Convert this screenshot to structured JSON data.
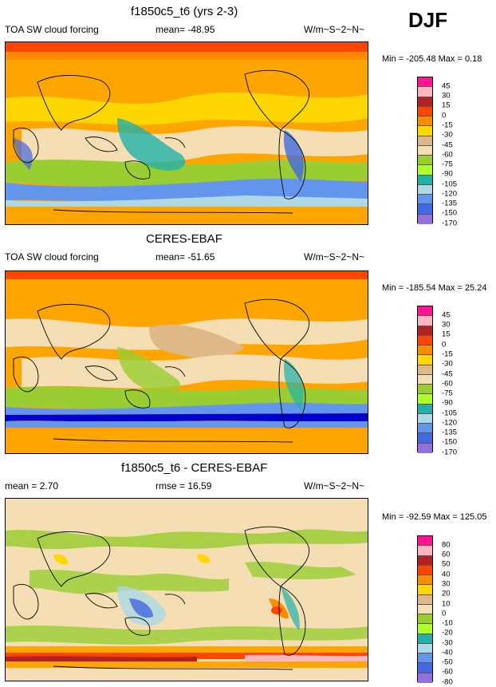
{
  "season": "DJF",
  "panels": [
    {
      "title": "f1850c5_t6 (yrs 2-3)",
      "left": "TOA SW cloud forcing",
      "middle": "mean= -48.95",
      "units": "W/m~S~2~N~",
      "minmax": "Min = -205.48 Max =   0.18",
      "levels": [
        "45",
        "30",
        "15",
        "0",
        "-15",
        "-30",
        "-45",
        "-60",
        "-75",
        "-90",
        "-105",
        "-120",
        "-135",
        "-150",
        "-170"
      ]
    },
    {
      "title": "CERES-EBAF",
      "left": "TOA SW cloud forcing",
      "middle": "mean= -51.65",
      "units": "W/m~S~2~N~",
      "minmax": "Min = -185.54 Max =  25.24",
      "levels": [
        "45",
        "30",
        "15",
        "0",
        "-15",
        "-30",
        "-45",
        "-60",
        "-75",
        "-90",
        "-105",
        "-120",
        "-135",
        "-150",
        "-170"
      ]
    },
    {
      "title": "f1850c5_t6 - CERES-EBAF",
      "left": "mean =   2.70",
      "middle": "rmse =  16.59",
      "units": "W/m~S~2~N~",
      "minmax": "Min = -92.59 Max = 125.05",
      "levels": [
        "80",
        "60",
        "50",
        "40",
        "30",
        "20",
        "10",
        "0",
        "-10",
        "-20",
        "-30",
        "-40",
        "-50",
        "-60",
        "-80"
      ]
    }
  ],
  "colors": {
    "abs_scale": [
      "#ff1493",
      "#ffb6c1",
      "#b22222",
      "#ff4500",
      "#ff8c00",
      "#ffa500",
      "#ffd700",
      "#deb887",
      "#f5deb3",
      "#9acd32",
      "#adff2f",
      "#20b2aa",
      "#add8e6",
      "#6495ed",
      "#4169e1",
      "#0000cd",
      "#9370db"
    ],
    "diff_scale": [
      "#ff1493",
      "#ffb6c1",
      "#b22222",
      "#ff4500",
      "#ff8c00",
      "#ffa500",
      "#ffd700",
      "#deb887",
      "#f5deb3",
      "#9acd32",
      "#adff2f",
      "#20b2aa",
      "#add8e6",
      "#6495ed",
      "#4169e1",
      "#0000cd",
      "#9370db"
    ]
  }
}
